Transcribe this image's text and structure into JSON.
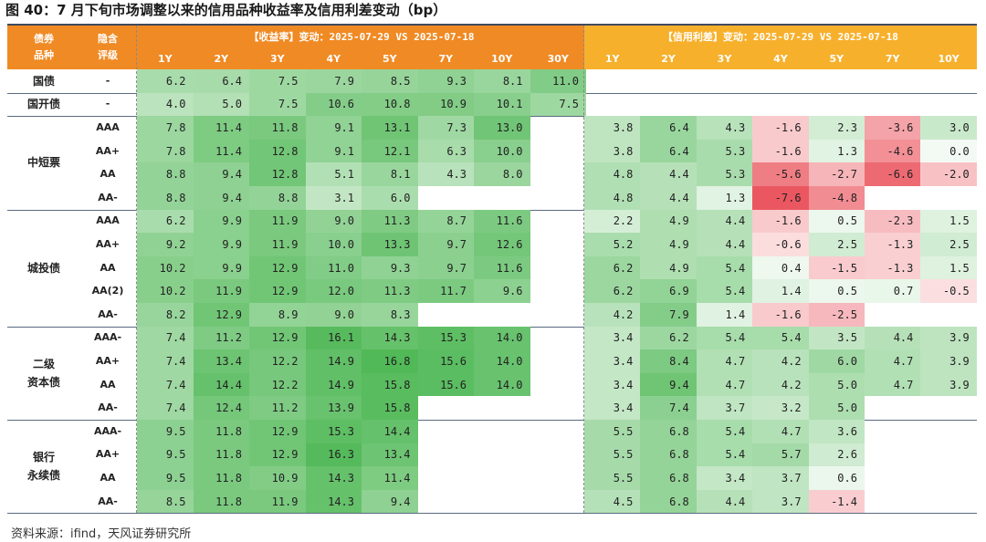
{
  "title": "图 40：7 月下旬市场调整以来的信用品种收益率及信用利差变动（bp）",
  "source": "资料来源：ifind，天风证券研究所",
  "header": {
    "category_label": "债券\n品种",
    "rating_label": "隐含\n评级",
    "yield_group": "【收益率】变动：2025-07-29 VS 2025-07-18",
    "spread_group": "【信用利差】变动：2025-07-29 VS 2025-07-18",
    "yield_terms": [
      "1Y",
      "2Y",
      "3Y",
      "4Y",
      "5Y",
      "7Y",
      "10Y",
      "30Y"
    ],
    "spread_terms": [
      "1Y",
      "2Y",
      "3Y",
      "4Y",
      "5Y",
      "7Y",
      "10Y"
    ]
  },
  "colors": {
    "yield_header": "#f08a24",
    "spread_header": "#f7b02c",
    "positive": "#3cb043",
    "negative": "#e8404a"
  },
  "chart_data": {
    "type": "table",
    "groups": [
      {
        "name": "国债",
        "rows": [
          {
            "rating": "-",
            "yield": [
              6.2,
              6.4,
              7.5,
              7.9,
              8.5,
              9.3,
              8.1,
              11.0
            ],
            "spread": [
              null,
              null,
              null,
              null,
              null,
              null,
              null
            ]
          }
        ]
      },
      {
        "name": "国开债",
        "rows": [
          {
            "rating": "-",
            "yield": [
              4.0,
              5.0,
              7.5,
              10.6,
              10.8,
              10.9,
              10.1,
              7.5
            ],
            "spread": [
              null,
              null,
              null,
              null,
              null,
              null,
              null
            ]
          }
        ]
      },
      {
        "name": "中短票",
        "rows": [
          {
            "rating": "AAA",
            "yield": [
              7.8,
              11.4,
              11.8,
              9.1,
              13.1,
              7.3,
              13.0,
              null
            ],
            "spread": [
              3.8,
              6.4,
              4.3,
              -1.6,
              2.3,
              -3.6,
              3.0
            ]
          },
          {
            "rating": "AA+",
            "yield": [
              7.8,
              11.4,
              12.8,
              9.1,
              12.1,
              6.3,
              10.0,
              null
            ],
            "spread": [
              3.8,
              6.4,
              5.3,
              -1.6,
              1.3,
              -4.6,
              0.0
            ]
          },
          {
            "rating": "AA",
            "yield": [
              8.8,
              9.4,
              12.8,
              5.1,
              8.1,
              4.3,
              8.0,
              null
            ],
            "spread": [
              4.8,
              4.4,
              5.3,
              -5.6,
              -2.7,
              -6.6,
              -2.0
            ]
          },
          {
            "rating": "AA-",
            "yield": [
              8.8,
              9.4,
              8.8,
              3.1,
              6.0,
              null,
              null,
              null
            ],
            "spread": [
              4.8,
              4.4,
              1.3,
              -7.6,
              -4.8,
              null,
              null
            ]
          }
        ]
      },
      {
        "name": "城投债",
        "rows": [
          {
            "rating": "AAA",
            "yield": [
              6.2,
              9.9,
              11.9,
              9.0,
              11.3,
              8.7,
              11.6,
              null
            ],
            "spread": [
              2.2,
              4.9,
              4.4,
              -1.6,
              0.5,
              -2.3,
              1.5
            ]
          },
          {
            "rating": "AA+",
            "yield": [
              9.2,
              9.9,
              11.9,
              10.0,
              13.3,
              9.7,
              12.6,
              null
            ],
            "spread": [
              5.2,
              4.9,
              4.4,
              -0.6,
              2.5,
              -1.3,
              2.5
            ]
          },
          {
            "rating": "AA",
            "yield": [
              10.2,
              9.9,
              12.9,
              11.0,
              9.3,
              9.7,
              11.6,
              null
            ],
            "spread": [
              6.2,
              4.9,
              5.4,
              0.4,
              -1.5,
              -1.3,
              1.5
            ]
          },
          {
            "rating": "AA(2)",
            "yield": [
              10.2,
              11.9,
              12.9,
              12.0,
              11.3,
              11.7,
              9.6,
              null
            ],
            "spread": [
              6.2,
              6.9,
              5.4,
              1.4,
              0.5,
              0.7,
              -0.5
            ]
          },
          {
            "rating": "AA-",
            "yield": [
              8.2,
              12.9,
              8.9,
              9.0,
              8.3,
              null,
              null,
              null
            ],
            "spread": [
              4.2,
              7.9,
              1.4,
              -1.6,
              -2.5,
              null,
              null
            ]
          }
        ]
      },
      {
        "name": "二级\n资本债",
        "rows": [
          {
            "rating": "AAA-",
            "yield": [
              7.4,
              11.2,
              12.9,
              16.1,
              14.3,
              15.3,
              14.0,
              null
            ],
            "spread": [
              3.4,
              6.2,
              5.4,
              5.4,
              3.5,
              4.4,
              3.9
            ]
          },
          {
            "rating": "AA+",
            "yield": [
              7.4,
              13.4,
              12.2,
              14.9,
              16.8,
              15.6,
              14.0,
              null
            ],
            "spread": [
              3.4,
              8.4,
              4.7,
              4.2,
              6.0,
              4.7,
              3.9
            ]
          },
          {
            "rating": "AA",
            "yield": [
              7.4,
              14.4,
              12.2,
              14.9,
              15.8,
              15.6,
              14.0,
              null
            ],
            "spread": [
              3.4,
              9.4,
              4.7,
              4.2,
              5.0,
              4.7,
              3.9
            ]
          },
          {
            "rating": "AA-",
            "yield": [
              7.4,
              12.4,
              11.2,
              13.9,
              15.8,
              null,
              null,
              null
            ],
            "spread": [
              3.4,
              7.4,
              3.7,
              3.2,
              5.0,
              null,
              null
            ]
          }
        ]
      },
      {
        "name": "银行\n永续债",
        "rows": [
          {
            "rating": "AAA-",
            "yield": [
              9.5,
              11.8,
              12.9,
              15.3,
              14.4,
              null,
              null,
              null
            ],
            "spread": [
              5.5,
              6.8,
              5.4,
              4.7,
              3.6,
              null,
              null
            ]
          },
          {
            "rating": "AA+",
            "yield": [
              9.5,
              11.8,
              12.9,
              16.3,
              13.4,
              null,
              null,
              null
            ],
            "spread": [
              5.5,
              6.8,
              5.4,
              5.7,
              2.6,
              null,
              null
            ]
          },
          {
            "rating": "AA",
            "yield": [
              9.5,
              11.8,
              10.9,
              14.3,
              11.4,
              null,
              null,
              null
            ],
            "spread": [
              5.5,
              6.8,
              3.4,
              3.7,
              0.6,
              null,
              null
            ]
          },
          {
            "rating": "AA-",
            "yield": [
              8.5,
              11.8,
              11.9,
              14.3,
              9.4,
              null,
              null,
              null
            ],
            "spread": [
              4.5,
              6.8,
              4.4,
              3.7,
              -1.4,
              null,
              null
            ]
          }
        ]
      }
    ]
  }
}
